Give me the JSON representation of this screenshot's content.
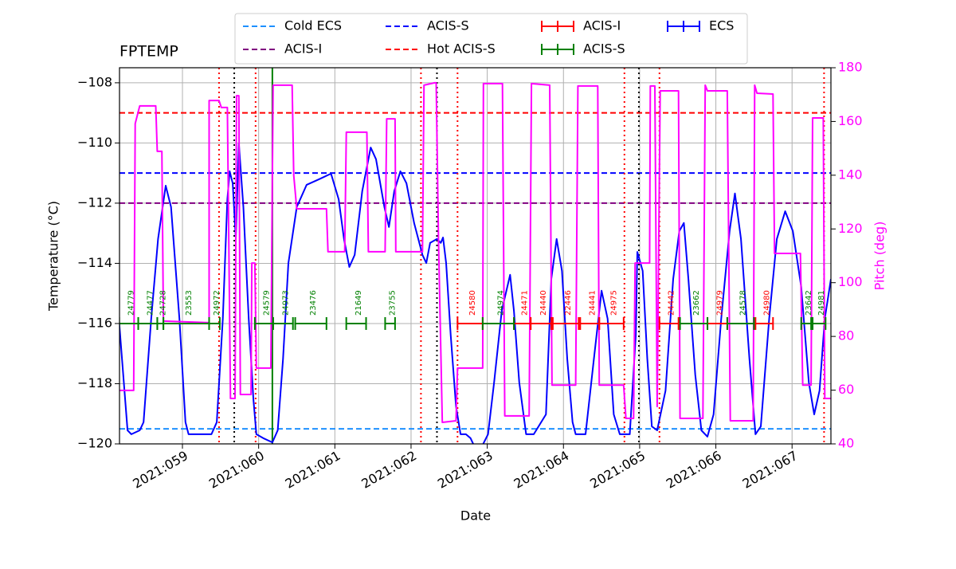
{
  "chart_data": {
    "type": "line",
    "title": "FPTEMP",
    "xlabel": "Date",
    "ylabel": "Temperature (°C)",
    "y2label": "Pitch (deg)",
    "grid": true,
    "xlim": [
      58.174,
      67.51
    ],
    "xticks": [
      {
        "value": 59,
        "label": "2021:059"
      },
      {
        "value": 60,
        "label": "2021:060"
      },
      {
        "value": 61,
        "label": "2021:061"
      },
      {
        "value": 62,
        "label": "2021:062"
      },
      {
        "value": 63,
        "label": "2021:063"
      },
      {
        "value": 64,
        "label": "2021:064"
      },
      {
        "value": 65,
        "label": "2021:065"
      },
      {
        "value": 66,
        "label": "2021:066"
      },
      {
        "value": 67,
        "label": "2021:067"
      }
    ],
    "ylim": [
      -120,
      -107.5
    ],
    "yticks": [
      {
        "value": -120,
        "label": "−120"
      },
      {
        "value": -118,
        "label": "−118"
      },
      {
        "value": -116,
        "label": "−116"
      },
      {
        "value": -114,
        "label": "−114"
      },
      {
        "value": -112,
        "label": "−112"
      },
      {
        "value": -110,
        "label": "−110"
      },
      {
        "value": -108,
        "label": "−108"
      }
    ],
    "y2lim": [
      40,
      180
    ],
    "y2ticks": [
      40,
      60,
      80,
      100,
      120,
      140,
      160,
      180
    ],
    "series": [
      {
        "color": "#0000ff",
        "x": [
          58.17,
          58.28,
          58.33,
          58.44,
          58.49,
          58.59,
          58.68,
          58.78,
          58.85,
          58.96,
          59.04,
          59.08,
          59.38,
          59.45,
          59.53,
          59.59,
          59.62,
          59.66,
          59.7,
          59.74,
          59.8,
          59.87,
          59.93,
          59.97,
          60.06,
          60.18,
          60.25,
          60.32,
          60.39,
          60.5,
          60.63,
          60.79,
          60.95,
          61.05,
          61.12,
          61.19,
          61.26,
          61.36,
          61.47,
          61.54,
          61.65,
          61.71,
          61.78,
          61.86,
          61.94,
          62.04,
          62.15,
          62.2,
          62.25,
          62.34,
          62.39,
          62.42,
          62.46,
          62.52,
          62.59,
          62.65,
          62.72,
          62.78,
          62.83,
          62.88,
          63.01,
          63.09,
          63.19,
          63.3,
          63.35,
          63.42,
          63.51,
          63.61,
          63.77,
          63.84,
          63.91,
          63.98,
          64.05,
          64.12,
          64.16,
          64.29,
          64.4,
          64.5,
          64.58,
          64.66,
          64.74,
          64.87,
          64.95,
          64.97,
          65.04,
          65.1,
          65.16,
          65.23,
          65.34,
          65.44,
          65.52,
          65.58,
          65.64,
          65.73,
          65.81,
          65.89,
          65.97,
          66.07,
          66.18,
          66.25,
          66.33,
          66.44,
          66.52,
          66.59,
          66.7,
          66.8,
          66.91,
          67.01,
          67.12,
          67.22,
          67.29,
          67.36,
          67.43,
          67.51
        ],
        "values": [
          -115.97,
          -119.55,
          -119.68,
          -119.55,
          -119.28,
          -115.84,
          -113.19,
          -111.42,
          -112.13,
          -115.84,
          -119.28,
          -119.68,
          -119.68,
          -119.28,
          -115.84,
          -111.87,
          -110.94,
          -111.34,
          -113.19,
          -110.01,
          -112.13,
          -115.84,
          -118.49,
          -119.68,
          -119.81,
          -119.95,
          -119.55,
          -117.17,
          -113.99,
          -112.13,
          -111.39,
          -111.21,
          -111.02,
          -111.87,
          -113.19,
          -114.12,
          -113.72,
          -111.6,
          -110.15,
          -110.54,
          -112.13,
          -112.79,
          -111.6,
          -110.94,
          -111.34,
          -112.66,
          -113.72,
          -113.99,
          -113.32,
          -113.19,
          -113.32,
          -113.14,
          -113.99,
          -116.37,
          -118.75,
          -119.68,
          -119.68,
          -119.81,
          -120.08,
          -120.34,
          -119.68,
          -117.96,
          -115.58,
          -114.38,
          -115.58,
          -117.96,
          -119.68,
          -119.68,
          -119.02,
          -114.52,
          -113.19,
          -114.25,
          -117.17,
          -119.28,
          -119.68,
          -119.68,
          -117.17,
          -114.91,
          -115.84,
          -119.02,
          -119.68,
          -119.68,
          -116.37,
          -113.62,
          -114.25,
          -117.17,
          -119.42,
          -119.55,
          -118.23,
          -114.52,
          -112.93,
          -112.66,
          -114.52,
          -117.7,
          -119.55,
          -119.76,
          -119.02,
          -115.84,
          -112.93,
          -111.68,
          -113.19,
          -117.17,
          -119.68,
          -119.42,
          -115.84,
          -113.19,
          -112.27,
          -112.93,
          -114.78,
          -117.96,
          -119.02,
          -118.23,
          -115.84,
          -114.52
        ]
      },
      {
        "color": "#ff00ff",
        "axis": "y2",
        "x": [
          58.17,
          58.36,
          58.38,
          58.44,
          58.65,
          58.67,
          58.73,
          58.75,
          59.35,
          59.35,
          59.48,
          59.51,
          59.59,
          59.63,
          59.69,
          59.71,
          59.74,
          59.76,
          59.9,
          59.91,
          59.95,
          59.97,
          60.16,
          60.19,
          60.44,
          60.46,
          60.5,
          60.89,
          60.91,
          61.13,
          61.15,
          61.42,
          61.44,
          61.66,
          61.68,
          61.79,
          61.8,
          62.15,
          62.17,
          62.31,
          62.33,
          62.36,
          62.41,
          62.59,
          62.61,
          62.94,
          62.95,
          63.2,
          63.23,
          63.55,
          63.58,
          63.82,
          63.85,
          64.16,
          64.19,
          64.45,
          64.47,
          64.79,
          64.82,
          64.92,
          64.94,
          65.13,
          65.14,
          65.2,
          65.23,
          65.27,
          65.51,
          65.53,
          65.83,
          65.86,
          65.89,
          66.15,
          66.19,
          66.49,
          66.51,
          66.54,
          66.75,
          66.77,
          67.11,
          67.14,
          67.25,
          67.27,
          67.41,
          67.43,
          67.51
        ],
        "values": [
          59.9,
          59.9,
          159.2,
          165.8,
          165.8,
          148.9,
          148.9,
          85.7,
          85.1,
          167.8,
          167.8,
          165.2,
          165.2,
          56.9,
          56.9,
          169.6,
          169.6,
          58.4,
          58.4,
          107.3,
          107.3,
          68.2,
          68.2,
          173.5,
          173.5,
          140.0,
          127.5,
          127.5,
          111.5,
          111.5,
          156.0,
          156.0,
          111.5,
          111.5,
          161.0,
          161.0,
          111.5,
          111.5,
          173.5,
          174.4,
          174.4,
          116.2,
          48.0,
          48.6,
          68.2,
          68.2,
          174.1,
          174.1,
          50.4,
          50.4,
          174.1,
          173.5,
          61.9,
          61.9,
          173.2,
          173.2,
          61.9,
          61.9,
          49.5,
          49.5,
          107.3,
          107.3,
          173.2,
          173.2,
          53.9,
          171.4,
          171.4,
          49.5,
          49.5,
          173.5,
          171.4,
          171.4,
          48.6,
          48.6,
          173.5,
          170.5,
          170.2,
          110.9,
          110.9,
          61.9,
          61.9,
          161.3,
          161.3,
          56.9,
          56.9
        ]
      }
    ],
    "hlines": [
      {
        "name": "Cold ECS",
        "value": -119.5,
        "color": "#1e90ff"
      },
      {
        "name": "ACIS-I",
        "value": -112,
        "color": "#800080"
      },
      {
        "name": "ACIS-S",
        "value": -111,
        "color": "#0000ff"
      },
      {
        "name": "Hot ACIS-S",
        "value": -109,
        "color": "#ff0000"
      }
    ],
    "obs_y": -116,
    "obs_series": [
      {
        "name": "ACIS-I",
        "color": "#ff0000",
        "intervals": [
          {
            "obsid": "24580",
            "start": 62.61,
            "end": 62.94
          },
          {
            "obsid": "24471",
            "start": 63.35,
            "end": 63.57
          },
          {
            "obsid": "24440",
            "start": 63.57,
            "end": 63.84
          },
          {
            "obsid": "22446",
            "start": 63.86,
            "end": 64.2
          },
          {
            "obsid": "24441",
            "start": 64.22,
            "end": 64.47
          },
          {
            "obsid": "24975",
            "start": 64.47,
            "end": 64.79
          },
          {
            "obsid": "24442",
            "start": 65.26,
            "end": 65.51
          },
          {
            "obsid": "24979",
            "start": 65.89,
            "end": 66.15
          },
          {
            "obsid": "24980",
            "start": 66.52,
            "end": 66.75
          }
        ]
      },
      {
        "name": "ACIS-S",
        "color": "#008000",
        "intervals": [
          {
            "obsid": "24779",
            "start": 58.17,
            "end": 58.42
          },
          {
            "obsid": "24477",
            "start": 58.42,
            "end": 58.67
          },
          {
            "obsid": "24728",
            "start": 58.67,
            "end": 58.75
          },
          {
            "obsid": "23553",
            "start": 58.75,
            "end": 59.35
          },
          {
            "obsid": "24972",
            "start": 59.35,
            "end": 59.49
          },
          {
            "obsid": "24579",
            "start": 59.95,
            "end": 60.19
          },
          {
            "obsid": "24973",
            "start": 60.19,
            "end": 60.45
          },
          {
            "obsid": "23476",
            "start": 60.48,
            "end": 60.89
          },
          {
            "obsid": "21649",
            "start": 61.15,
            "end": 61.41
          },
          {
            "obsid": "23755",
            "start": 61.66,
            "end": 61.79
          },
          {
            "obsid": "24974",
            "start": 62.94,
            "end": 63.35
          },
          {
            "obsid": "23662",
            "start": 65.53,
            "end": 65.89
          },
          {
            "obsid": "24578",
            "start": 66.15,
            "end": 66.5
          },
          {
            "obsid": "23642",
            "start": 67.12,
            "end": 67.25
          },
          {
            "obsid": "24981",
            "start": 67.27,
            "end": 67.44
          }
        ]
      },
      {
        "name": "ECS",
        "color": "#0000ff",
        "intervals": []
      }
    ],
    "vlines": [
      {
        "x": 59.68,
        "color": "#000000",
        "style": "dotted"
      },
      {
        "x": 62.34,
        "color": "#000000",
        "style": "dotted"
      },
      {
        "x": 64.99,
        "color": "#000000",
        "style": "dotted"
      },
      {
        "x": 59.48,
        "color": "#ff0000",
        "style": "dotted"
      },
      {
        "x": 59.96,
        "color": "#ff0000",
        "style": "dotted"
      },
      {
        "x": 62.13,
        "color": "#ff0000",
        "style": "dotted"
      },
      {
        "x": 62.61,
        "color": "#ff0000",
        "style": "dotted"
      },
      {
        "x": 64.8,
        "color": "#ff0000",
        "style": "dotted"
      },
      {
        "x": 65.26,
        "color": "#ff0000",
        "style": "dotted"
      },
      {
        "x": 67.42,
        "color": "#ff0000",
        "style": "dotted"
      },
      {
        "x": 60.18,
        "color": "#008000",
        "style": "solid"
      }
    ]
  }
}
